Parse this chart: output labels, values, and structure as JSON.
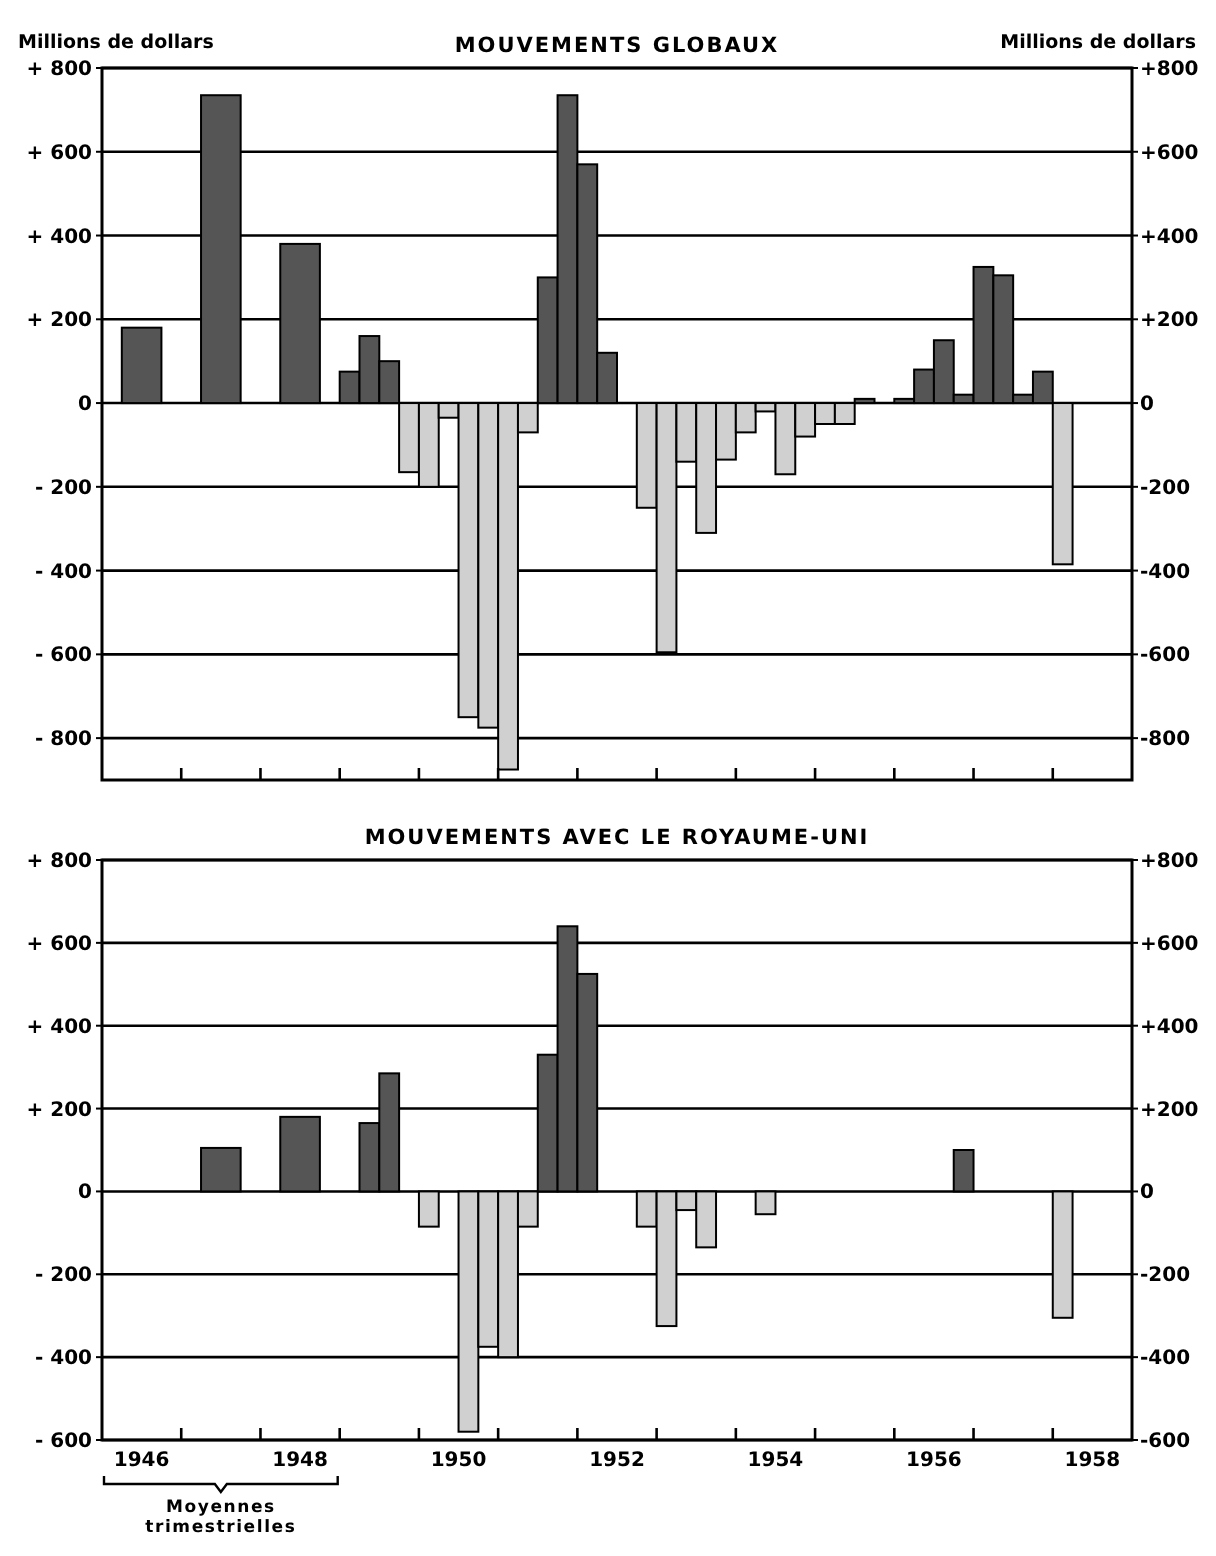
{
  "chart_data": [
    {
      "type": "bar",
      "title": "MOUVEMENTS GLOBAUX",
      "ylabel": "Millions de dollars",
      "y2label": "Millions de dollars",
      "x": [
        1946.5,
        1947.5,
        1948.5,
        1949.125,
        1949.375,
        1949.625,
        1949.875,
        1950.125,
        1950.375,
        1950.625,
        1950.875,
        1951.125,
        1951.375,
        1951.625,
        1951.875,
        1952.125,
        1952.375,
        1952.625,
        1952.875,
        1953.125,
        1953.375,
        1953.625,
        1953.875,
        1954.125,
        1954.375,
        1954.625,
        1954.875,
        1955.125,
        1955.375,
        1955.625,
        1955.875,
        1956.125,
        1956.375,
        1956.625,
        1956.875,
        1957.125,
        1957.375,
        1957.625,
        1957.875,
        1958.125
      ],
      "values": [
        180,
        735,
        380,
        75,
        160,
        100,
        -165,
        -200,
        -35,
        -750,
        -775,
        -875,
        -70,
        300,
        735,
        570,
        120,
        0,
        -250,
        -595,
        -140,
        -310,
        -135,
        -70,
        -20,
        -170,
        -80,
        -50,
        -50,
        10,
        0,
        10,
        80,
        150,
        20,
        325,
        305,
        20,
        75,
        -385
      ],
      "colors": [
        "#555555",
        "#555555",
        "#555555",
        "#555555",
        "#555555",
        "#555555",
        "#d0d0d0",
        "#d0d0d0",
        "#d0d0d0",
        "#d0d0d0",
        "#d0d0d0",
        "#d0d0d0",
        "#d0d0d0",
        "#555555",
        "#555555",
        "#555555",
        "#555555",
        "#555555",
        "#d0d0d0",
        "#d0d0d0",
        "#d0d0d0",
        "#d0d0d0",
        "#d0d0d0",
        "#d0d0d0",
        "#d0d0d0",
        "#d0d0d0",
        "#d0d0d0",
        "#d0d0d0",
        "#d0d0d0",
        "#555555",
        "#555555",
        "#555555",
        "#555555",
        "#555555",
        "#555555",
        "#555555",
        "#555555",
        "#555555",
        "#555555",
        "#d0d0d0"
      ],
      "xlim": [
        1946,
        1959
      ],
      "xticks": [
        {
          "value": 1947,
          "label": null
        },
        {
          "value": 1948,
          "label": null
        },
        {
          "value": 1949,
          "label": null
        },
        {
          "value": 1950,
          "label": null
        },
        {
          "value": 1951,
          "label": null
        },
        {
          "value": 1952,
          "label": null
        },
        {
          "value": 1953,
          "label": null
        },
        {
          "value": 1954,
          "label": null
        },
        {
          "value": 1955,
          "label": null
        },
        {
          "value": 1956,
          "label": null
        },
        {
          "value": 1957,
          "label": null
        },
        {
          "value": 1958,
          "label": null
        }
      ],
      "ylim": [
        -900,
        800
      ],
      "yticks": [
        {
          "value": 800,
          "label": "+ 800"
        },
        {
          "value": 600,
          "label": "+ 600"
        },
        {
          "value": 400,
          "label": "+ 400"
        },
        {
          "value": 200,
          "label": "+ 200"
        },
        0,
        {
          "value": -200,
          "label": "- 200"
        },
        {
          "value": -400,
          "label": "- 400"
        },
        {
          "value": -600,
          "label": "- 600"
        },
        {
          "value": -800,
          "label": "- 800"
        }
      ],
      "y2lim": [
        -900,
        800
      ],
      "y2ticks": [
        {
          "value": 800,
          "label": "+800"
        },
        {
          "value": 600,
          "label": "+600"
        },
        {
          "value": 400,
          "label": "+400"
        },
        {
          "value": 200,
          "label": "+200"
        },
        0,
        {
          "value": -200,
          "label": "-200"
        },
        {
          "value": -400,
          "label": "-400"
        },
        {
          "value": -600,
          "label": "-600"
        },
        {
          "value": -800,
          "label": "-800"
        }
      ],
      "tick_labels": "y",
      "grid": "y"
    },
    {
      "type": "bar",
      "title": "MOUVEMENTS AVEC LE ROYAUME-UNI",
      "x": [
        1947.5,
        1948.5,
        1949.125,
        1949.375,
        1949.625,
        1949.875,
        1950.125,
        1950.375,
        1950.625,
        1950.875,
        1951.125,
        1951.375,
        1951.625,
        1951.875,
        1952.125,
        1952.375,
        1952.625,
        1952.875,
        1953.125,
        1953.375,
        1953.625,
        1953.875,
        1954.125,
        1954.375,
        1954.625,
        1954.875,
        1955.125,
        1955.375,
        1955.625,
        1955.875,
        1956.125,
        1956.375,
        1956.625,
        1956.875,
        1957.125,
        1957.375,
        1957.625,
        1957.875,
        1958.125
      ],
      "values": [
        105,
        180,
        0,
        165,
        285,
        0,
        -85,
        0,
        -580,
        -375,
        -400,
        -85,
        330,
        640,
        525,
        0,
        0,
        -85,
        -325,
        -45,
        -135,
        0,
        0,
        -55,
        0,
        0,
        0,
        0,
        0,
        0,
        0,
        0,
        0,
        100,
        0,
        0,
        0,
        0,
        -305
      ],
      "colors": [
        "#555555",
        "#555555",
        "#555555",
        "#555555",
        "#555555",
        "#555555",
        "#d0d0d0",
        "#555555",
        "#d0d0d0",
        "#d0d0d0",
        "#d0d0d0",
        "#d0d0d0",
        "#555555",
        "#555555",
        "#555555",
        "#555555",
        "#555555",
        "#d0d0d0",
        "#d0d0d0",
        "#d0d0d0",
        "#d0d0d0",
        "#555555",
        "#555555",
        "#d0d0d0",
        "#555555",
        "#555555",
        "#555555",
        "#555555",
        "#555555",
        "#555555",
        "#555555",
        "#555555",
        "#555555",
        "#555555",
        "#555555",
        "#555555",
        "#555555",
        "#555555",
        "#d0d0d0"
      ],
      "xlim": [
        1946,
        1959
      ],
      "xticks": [
        {
          "value": 1946.5,
          "label": "1946"
        },
        {
          "value": 1947,
          "label": null
        },
        {
          "value": 1948,
          "label": null
        },
        {
          "value": 1948.5,
          "label": "1948"
        },
        {
          "value": 1949,
          "label": null
        },
        {
          "value": 1950,
          "label": null
        },
        {
          "value": 1950.5,
          "label": "1950"
        },
        {
          "value": 1951,
          "label": null
        },
        {
          "value": 1952,
          "label": null
        },
        {
          "value": 1952.5,
          "label": "1952"
        },
        {
          "value": 1953,
          "label": null
        },
        {
          "value": 1954,
          "label": null
        },
        {
          "value": 1954.5,
          "label": "1954"
        },
        {
          "value": 1955,
          "label": null
        },
        {
          "value": 1956,
          "label": null
        },
        {
          "value": 1956.5,
          "label": "1956"
        },
        {
          "value": 1957,
          "label": null
        },
        {
          "value": 1958,
          "label": null
        },
        {
          "value": 1958.5,
          "label": "1958"
        }
      ],
      "ylim": [
        -600,
        800
      ],
      "yticks": [
        {
          "value": 800,
          "label": "+ 800"
        },
        {
          "value": 600,
          "label": "+ 600"
        },
        {
          "value": 400,
          "label": "+ 400"
        },
        {
          "value": 200,
          "label": "+ 200"
        },
        0,
        {
          "value": -200,
          "label": "- 200"
        },
        {
          "value": -400,
          "label": "- 400"
        },
        {
          "value": -600,
          "label": "- 600"
        }
      ],
      "y2lim": [
        -600,
        800
      ],
      "y2ticks": [
        {
          "value": 800,
          "label": "+800"
        },
        {
          "value": 600,
          "label": "+600"
        },
        {
          "value": 400,
          "label": "+400"
        },
        {
          "value": 200,
          "label": "+200"
        },
        0,
        {
          "value": -200,
          "label": "-200"
        },
        {
          "value": -400,
          "label": "-400"
        },
        {
          "value": -600,
          "label": "-600"
        }
      ],
      "grid": "y",
      "annotations": [
        "Moyennes trimestrielles"
      ]
    }
  ]
}
